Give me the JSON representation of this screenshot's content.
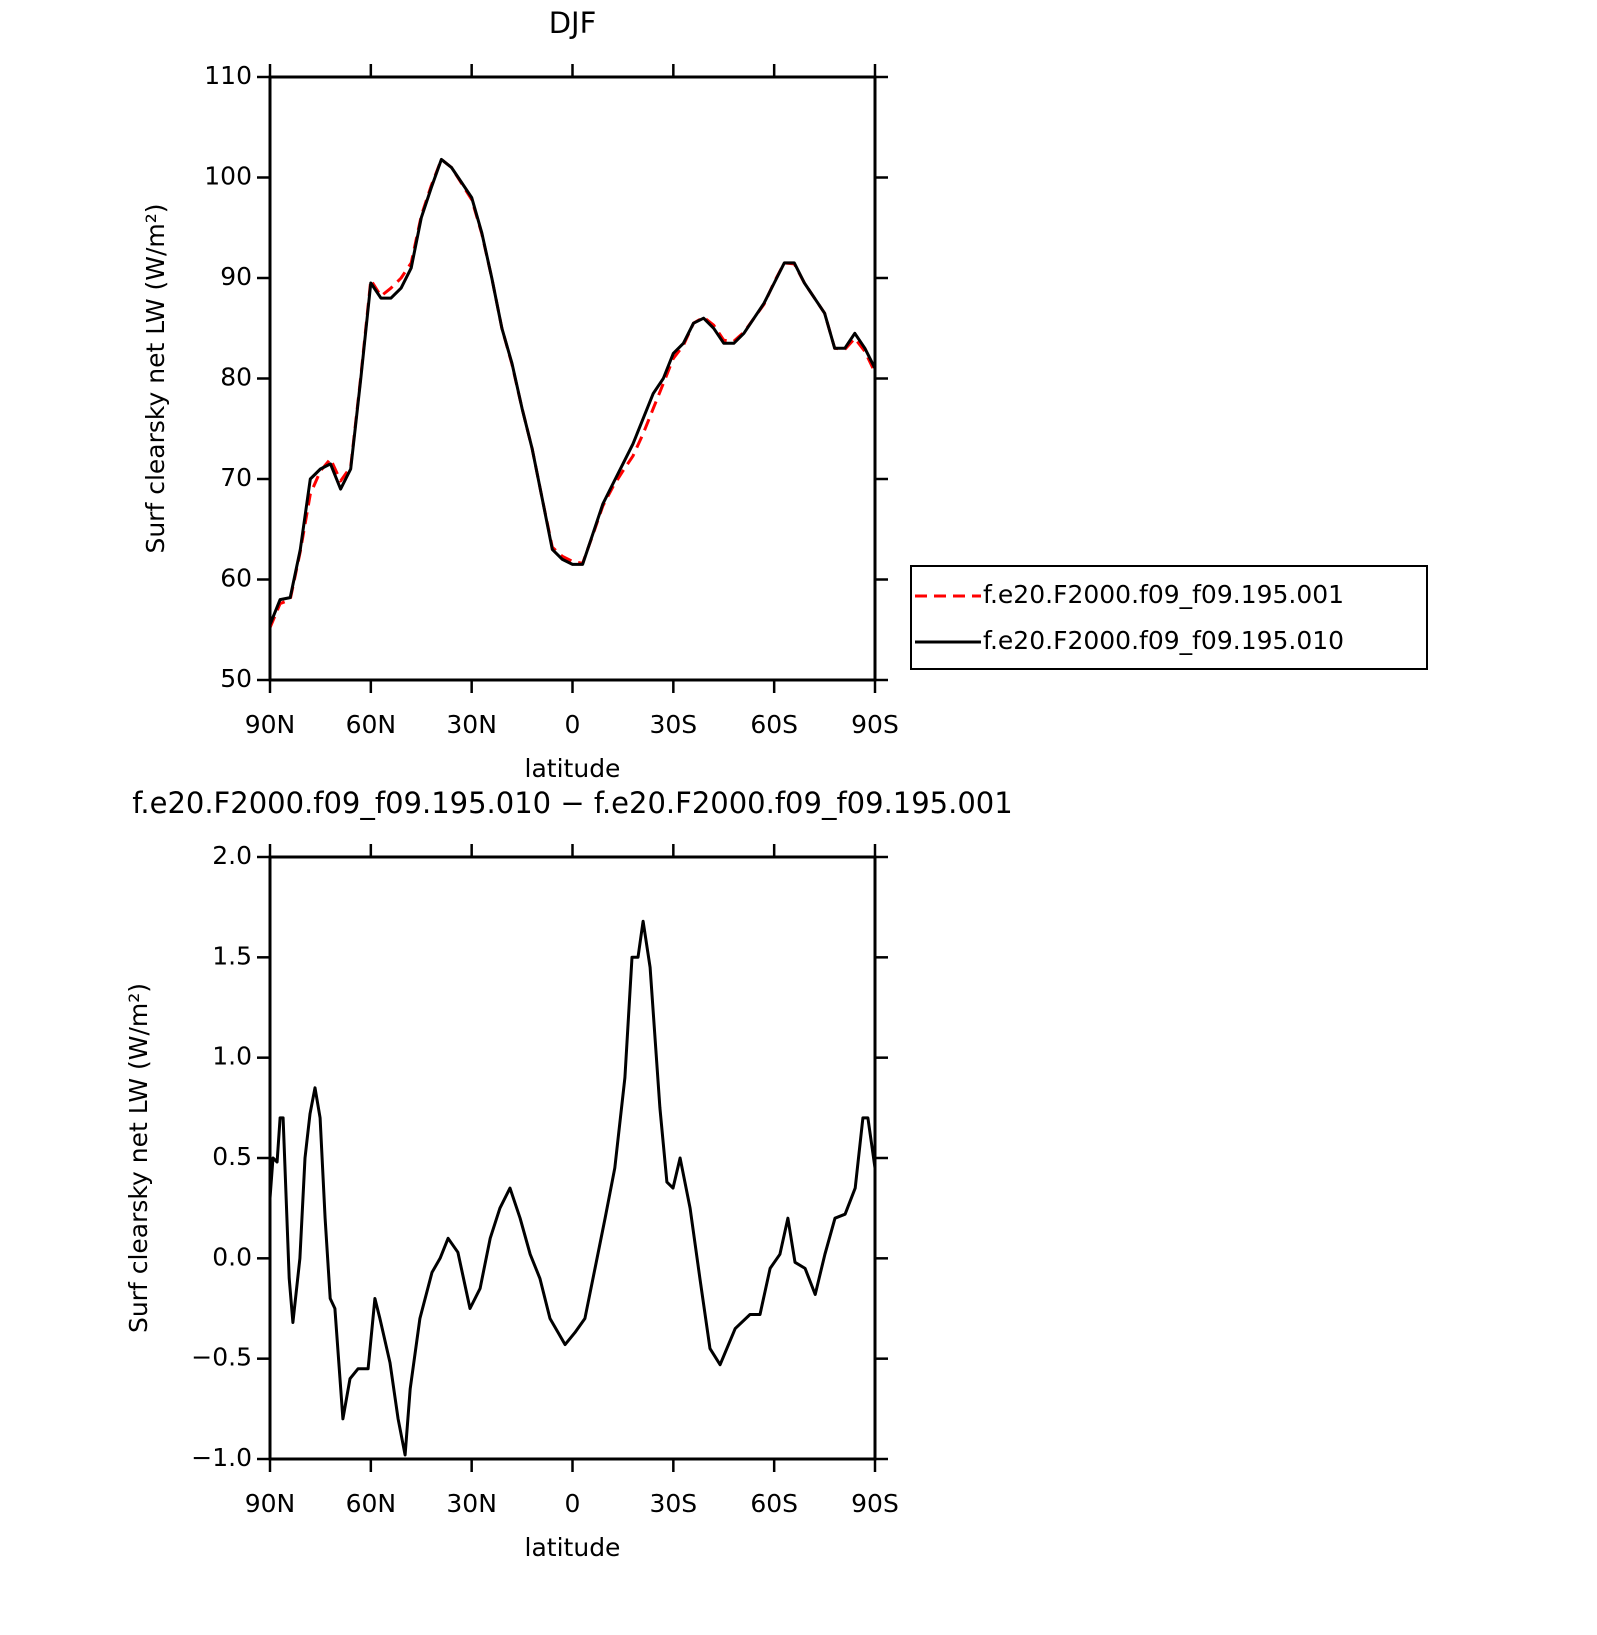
{
  "chart_data": [
    {
      "type": "line",
      "title": "DJF",
      "xlabel": "latitude",
      "ylabel": "Surf clearsky net LW (W/m²)",
      "xlim": [
        90,
        -90
      ],
      "ylim": [
        50,
        110
      ],
      "xticks": [
        {
          "value": 90,
          "label": "90N"
        },
        {
          "value": 60,
          "label": "60N"
        },
        {
          "value": 30,
          "label": "30N"
        },
        0,
        {
          "value": -30,
          "label": "30S"
        },
        {
          "value": -60,
          "label": "60S"
        },
        {
          "value": -90,
          "label": "90S"
        }
      ],
      "yticks": [
        50,
        60,
        70,
        80,
        90,
        100,
        110
      ],
      "legend": "right",
      "x": [
        90,
        87,
        84,
        81,
        78,
        75,
        72,
        69,
        66,
        63,
        60,
        57,
        54,
        51,
        48,
        45,
        42,
        39,
        36,
        33,
        30,
        27,
        24,
        21,
        18,
        15,
        12,
        9,
        6,
        3,
        0,
        -3,
        -6,
        -9,
        -12,
        -15,
        -18,
        -21,
        -24,
        -27,
        -30,
        -33,
        -36,
        -39,
        -42,
        -45,
        -48,
        -51,
        -54,
        -57,
        -60,
        -63,
        -66,
        -69,
        -72,
        -75,
        -78,
        -81,
        -84,
        -87,
        -90
      ],
      "series": [
        {
          "name": "f.e20.F2000.f09_f09.195.001",
          "color": "#ff0000",
          "line_style": "dashed",
          "values": [
            55.2,
            57.6,
            58.0,
            62.8,
            68.5,
            70.8,
            72.0,
            69.8,
            71.2,
            80.2,
            89.8,
            88.2,
            89.0,
            90.0,
            91.5,
            96.2,
            99.2,
            101.8,
            101.0,
            99.4,
            97.8,
            94.4,
            90.0,
            85.0,
            81.4,
            77.0,
            73.0,
            68.0,
            63.2,
            62.3,
            61.8,
            61.6,
            64.4,
            67.3,
            69.2,
            70.8,
            72.3,
            74.5,
            77.0,
            79.5,
            82.0,
            83.3,
            85.5,
            86.1,
            85.3,
            83.8,
            83.7,
            84.6,
            86.0,
            87.4,
            89.6,
            91.5,
            91.4,
            89.5,
            88.0,
            86.5,
            83.0,
            82.9,
            84.0,
            82.7,
            80.6
          ]
        },
        {
          "name": "f.e20.F2000.f09_f09.195.010",
          "color": "#000000",
          "line_style": "solid",
          "values": [
            55.5,
            58.0,
            58.2,
            63.0,
            70.0,
            71.0,
            71.5,
            69.0,
            71.0,
            80.0,
            89.5,
            88.0,
            88.0,
            89.0,
            91.0,
            96.0,
            99.0,
            101.8,
            101.0,
            99.5,
            98.0,
            94.5,
            90.0,
            85.0,
            81.5,
            77.0,
            73.0,
            68.0,
            63.0,
            62.0,
            61.5,
            61.5,
            64.5,
            67.5,
            69.5,
            71.5,
            73.5,
            76.0,
            78.5,
            80.0,
            82.5,
            83.5,
            85.5,
            86.0,
            85.0,
            83.5,
            83.5,
            84.5,
            86.0,
            87.5,
            89.5,
            91.5,
            91.5,
            89.5,
            88.0,
            86.5,
            83.0,
            83.0,
            84.5,
            83.0,
            81.0
          ]
        }
      ]
    },
    {
      "type": "line",
      "title": "f.e20.F2000.f09_f09.195.010 − f.e20.F2000.f09_f09.195.001",
      "xlabel": "latitude",
      "ylabel": "Surf clearsky net LW (W/m²)",
      "xlim": [
        90,
        -90
      ],
      "ylim": [
        -1,
        2
      ],
      "xticks": [
        {
          "value": 90,
          "label": "90N"
        },
        {
          "value": 60,
          "label": "60N"
        },
        {
          "value": 30,
          "label": "30N"
        },
        0,
        {
          "value": -30,
          "label": "30S"
        },
        {
          "value": -60,
          "label": "60S"
        },
        {
          "value": -90,
          "label": "90S"
        }
      ],
      "yticks": [
        {
          "value": -1,
          "label": "−1.0"
        },
        {
          "value": -0.5,
          "label": "−0.5"
        },
        {
          "value": 0,
          "label": "0.0"
        },
        0.5,
        {
          "value": 1,
          "label": "1.0"
        },
        1.5,
        {
          "value": 2,
          "label": "2.0"
        }
      ],
      "color": "#000000",
      "x": [
        90,
        89.1,
        87.9,
        87.0,
        86.1,
        84.3,
        83.2,
        81.1,
        79.6,
        78.1,
        76.6,
        75.1,
        73.6,
        72.1,
        70.7,
        68.3,
        66.2,
        63.8,
        60.8,
        58.8,
        57.3,
        54.3,
        51.9,
        49.8,
        48.3,
        45.4,
        41.8,
        39.4,
        37.0,
        34.1,
        30.5,
        27.5,
        24.5,
        21.6,
        18.6,
        15.6,
        12.6,
        9.7,
        6.7,
        2.2,
        -0.7,
        -3.7,
        -6.7,
        -9.7,
        -12.6,
        -15.6,
        -17.7,
        -19.5,
        -21.0,
        -23.1,
        -26.0,
        -28.1,
        -29.9,
        -32.0,
        -35.0,
        -37.9,
        -40.9,
        -43.9,
        -48.4,
        -52.8,
        -55.8,
        -58.8,
        -61.7,
        -64.1,
        -66.2,
        -69.2,
        -72.2,
        -75.1,
        -78.1,
        -81.1,
        -84.1,
        -86.4,
        -87.9,
        -90
      ],
      "values": [
        0.3,
        0.5,
        0.48,
        0.7,
        0.7,
        -0.1,
        -0.32,
        0.0,
        0.5,
        0.72,
        0.85,
        0.7,
        0.2,
        -0.2,
        -0.25,
        -0.8,
        -0.6,
        -0.55,
        -0.55,
        -0.2,
        -0.3,
        -0.52,
        -0.8,
        -0.98,
        -0.65,
        -0.3,
        -0.07,
        0.0,
        0.1,
        0.03,
        -0.25,
        -0.15,
        0.1,
        0.25,
        0.35,
        0.2,
        0.02,
        -0.1,
        -0.3,
        -0.43,
        -0.37,
        -0.3,
        -0.05,
        0.2,
        0.45,
        0.9,
        1.5,
        1.5,
        1.68,
        1.45,
        0.75,
        0.38,
        0.35,
        0.5,
        0.25,
        -0.1,
        -0.45,
        -0.53,
        -0.35,
        -0.28,
        -0.28,
        -0.05,
        0.02,
        0.2,
        -0.02,
        -0.05,
        -0.18,
        0.02,
        0.2,
        0.22,
        0.35,
        0.7,
        0.7,
        0.45
      ]
    }
  ]
}
